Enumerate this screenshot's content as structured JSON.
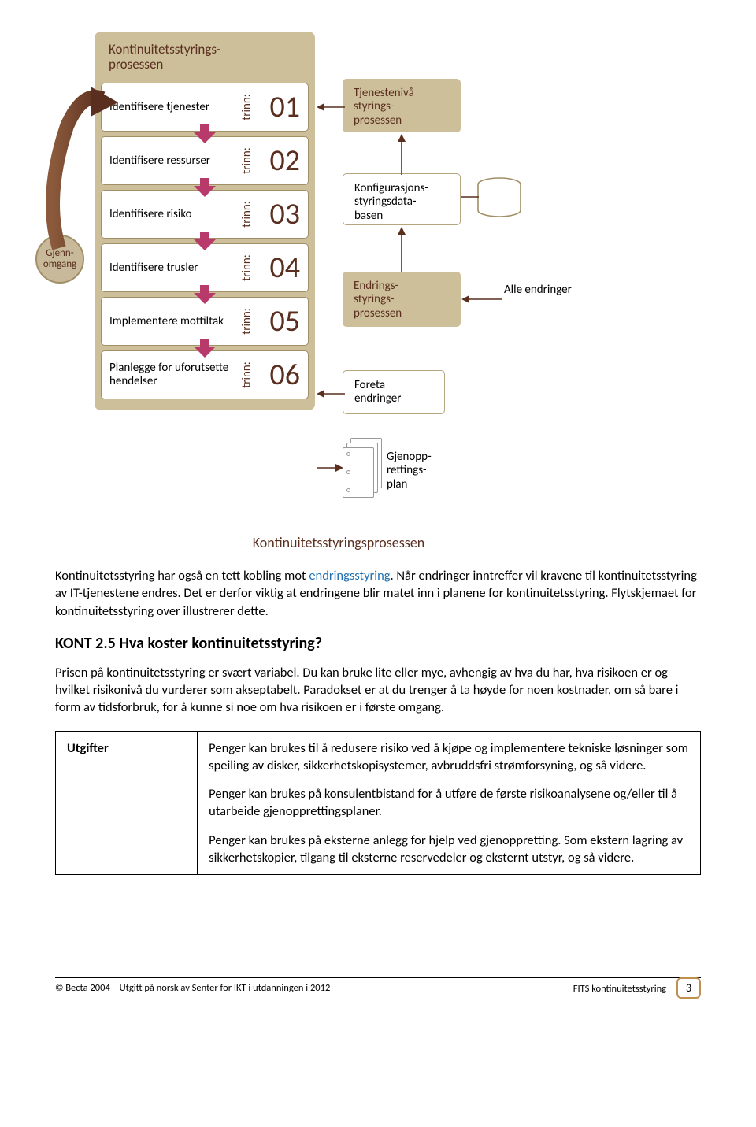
{
  "diagram": {
    "mainTitle": "Kontinuitetsstyrings-\nprosessen",
    "steps": [
      {
        "label": "Identifisere tjenester",
        "prefix": "trinn:",
        "num": "01"
      },
      {
        "label": "Identifisere ressurser",
        "prefix": "trinn:",
        "num": "02"
      },
      {
        "label": "Identifisere risiko",
        "prefix": "trinn:",
        "num": "03"
      },
      {
        "label": "Identifisere trusler",
        "prefix": "trinn:",
        "num": "04"
      },
      {
        "label": "Implementere mottiltak",
        "prefix": "trinn:",
        "num": "05"
      },
      {
        "label": "Planlegge for uforutsette hendelser",
        "prefix": "trinn:",
        "num": "06"
      }
    ],
    "rightBoxes": {
      "tjenesteniva": "Tjenestenivå styrings-\nprosessen",
      "konfig": "Konfigurasjons-\nstyringsdata-\nbasen",
      "endrings": "Endrings-\nstyrings-\nprosessen",
      "alle": "Alle endringer",
      "foreta": "Foreta endringer",
      "gjenopp": "Gjenopp-\nrettings-\nplan"
    },
    "badge": "Gjenn-\nomgang",
    "caption": "Kontinuitetsstyringsprosessen",
    "colors": {
      "tan": "#cdbf9a",
      "tanBorder": "#a08f67",
      "brown": "#5a2f1f",
      "arrowPink": "#b83a6b"
    }
  },
  "paragraph1_a": "Kontinuitetsstyring har også en tett kobling mot ",
  "paragraph1_link": "endringsstyring",
  "paragraph1_b": ". Når endringer inntreffer vil kravene til kontinuitetsstyring av IT-tjenestene endres. Det er derfor viktig at endringene blir matet inn i planene for kontinuitetsstyring. Flytskjemaet for kontinuitetsstyring over illustrerer dette.",
  "heading": "KONT 2.5 Hva koster kontinuitetsstyring?",
  "paragraph2": "Prisen på kontinuitetsstyring er svært variabel. Du kan bruke lite eller mye, avhengig av hva du har, hva risikoen er og hvilket risikonivå du vurderer som akseptabelt. Paradokset er at du trenger å ta høyde for noen kostnader, om så bare i form av tidsforbruk, for å kunne si noe om hva risikoen er i første omgang.",
  "table": {
    "leftHeader": "Utgifter",
    "p1": "Penger kan brukes til å redusere risiko ved å kjøpe og implementere tekniske løsninger som speiling av disker, sikkerhetskopisystemer, avbruddsfri strømforsyning, og så videre.",
    "p2": "Penger kan brukes på konsulentbistand for å utføre de første risikoanalysene og/eller til å utarbeide gjenopprettingsplaner.",
    "p3": "Penger kan brukes på eksterne anlegg for hjelp ved gjenoppretting. Som ekstern lagring av sikkerhetskopier, tilgang til eksterne reservedeler og eksternt utstyr, og så videre."
  },
  "footer": {
    "left": "© Becta 2004 – Utgitt på norsk av Senter for IKT i utdanningen i 2012",
    "right": "FITS kontinuitetsstyring",
    "page": "3"
  }
}
